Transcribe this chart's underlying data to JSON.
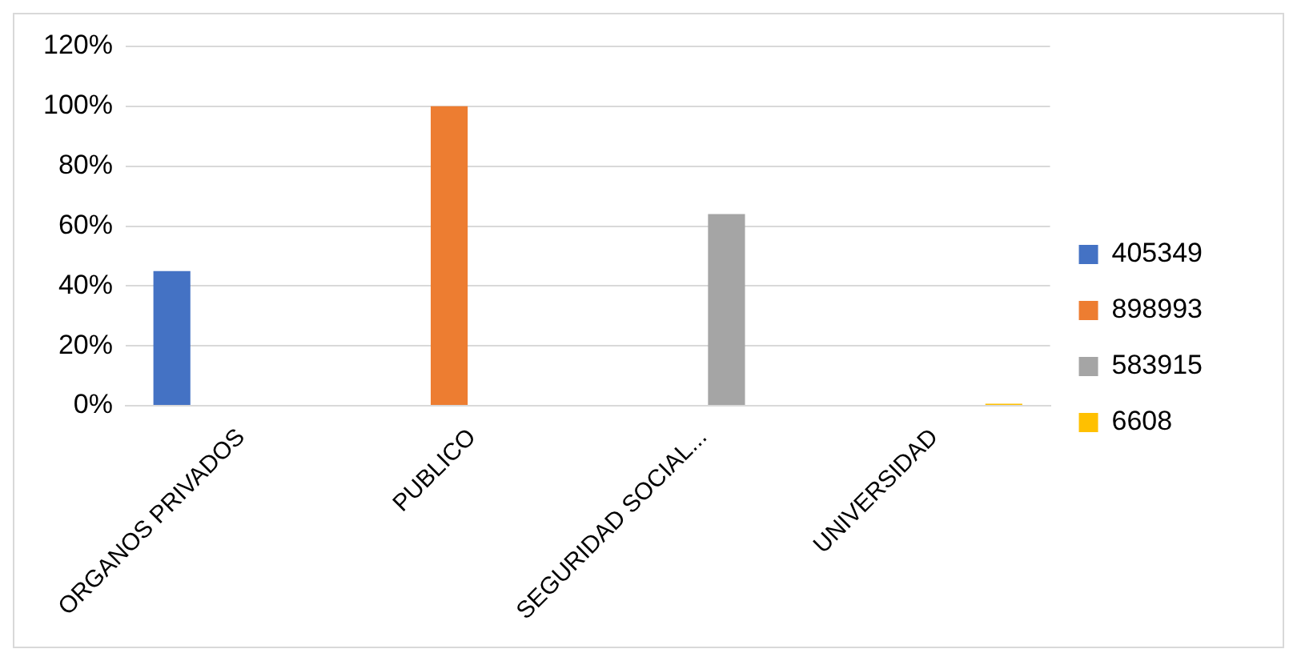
{
  "chart_data": {
    "type": "bar",
    "categories": [
      "ORGANOS PRIVADOS",
      "PUBLICO",
      "SEGURIDAD SOCIAL...",
      "UNIVERSIDAD"
    ],
    "series": [
      {
        "name": "405349",
        "color": "#4472c4",
        "values": [
          45,
          null,
          null,
          null
        ]
      },
      {
        "name": "898993",
        "color": "#ed7d31",
        "values": [
          null,
          100,
          null,
          null
        ]
      },
      {
        "name": "583915",
        "color": "#a5a5a5",
        "values": [
          null,
          null,
          64,
          null
        ]
      },
      {
        "name": "6608",
        "color": "#ffc000",
        "values": [
          null,
          null,
          null,
          0.7
        ]
      }
    ],
    "ylim": [
      0,
      120
    ],
    "yticks": [
      {
        "value": 0,
        "label": "0%"
      },
      {
        "value": 20,
        "label": "20%"
      },
      {
        "value": 40,
        "label": "40%"
      },
      {
        "value": 60,
        "label": "60%"
      },
      {
        "value": 80,
        "label": "80%"
      },
      {
        "value": 100,
        "label": "100%"
      },
      {
        "value": 120,
        "label": "120%"
      }
    ],
    "grid": "y",
    "legend": "right"
  }
}
